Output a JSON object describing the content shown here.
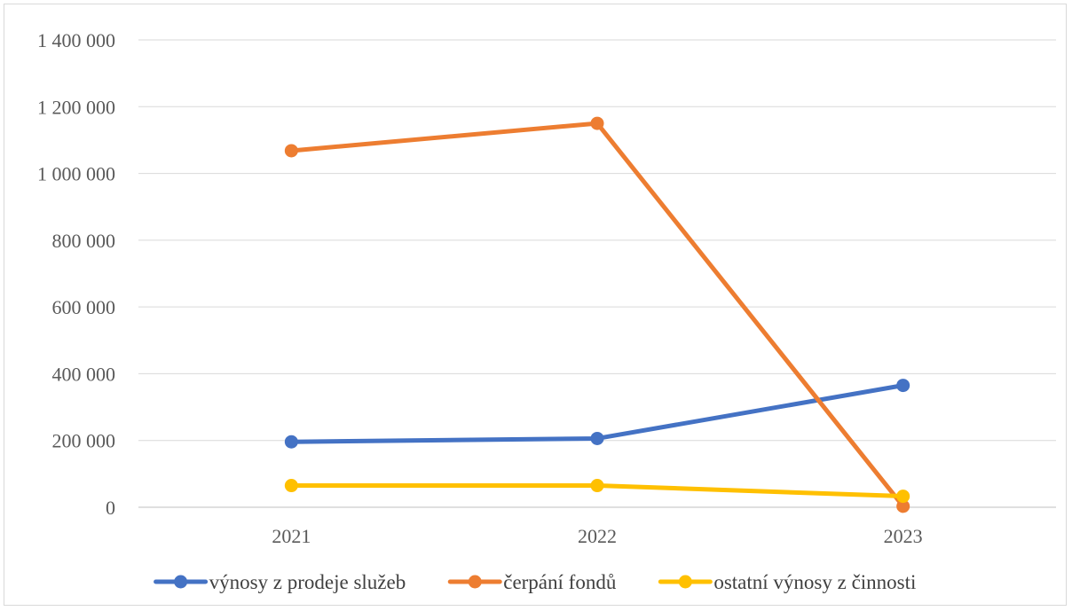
{
  "chart_data": {
    "type": "line",
    "title": "",
    "xlabel": "",
    "ylabel": "",
    "categories": [
      "2021",
      "2022",
      "2023"
    ],
    "ylim": [
      0,
      1400000
    ],
    "yticks": [
      0,
      200000,
      400000,
      600000,
      800000,
      1000000,
      1200000,
      1400000
    ],
    "ytick_labels": [
      "0",
      "200 000",
      "400 000",
      "600 000",
      "800 000",
      "1 000 000",
      "1 200 000",
      "1 400 000"
    ],
    "grid": true,
    "legend_position": "bottom",
    "series": [
      {
        "name": "výnosy z prodeje služeb",
        "color": "#4472c4",
        "values": [
          196000,
          206000,
          365000
        ]
      },
      {
        "name": "čerpání fondů",
        "color": "#ed7d31",
        "values": [
          1068000,
          1150000,
          3000
        ]
      },
      {
        "name": "ostatní výnosy z činnosti",
        "color": "#ffc000",
        "values": [
          65000,
          65000,
          33000
        ]
      }
    ]
  }
}
